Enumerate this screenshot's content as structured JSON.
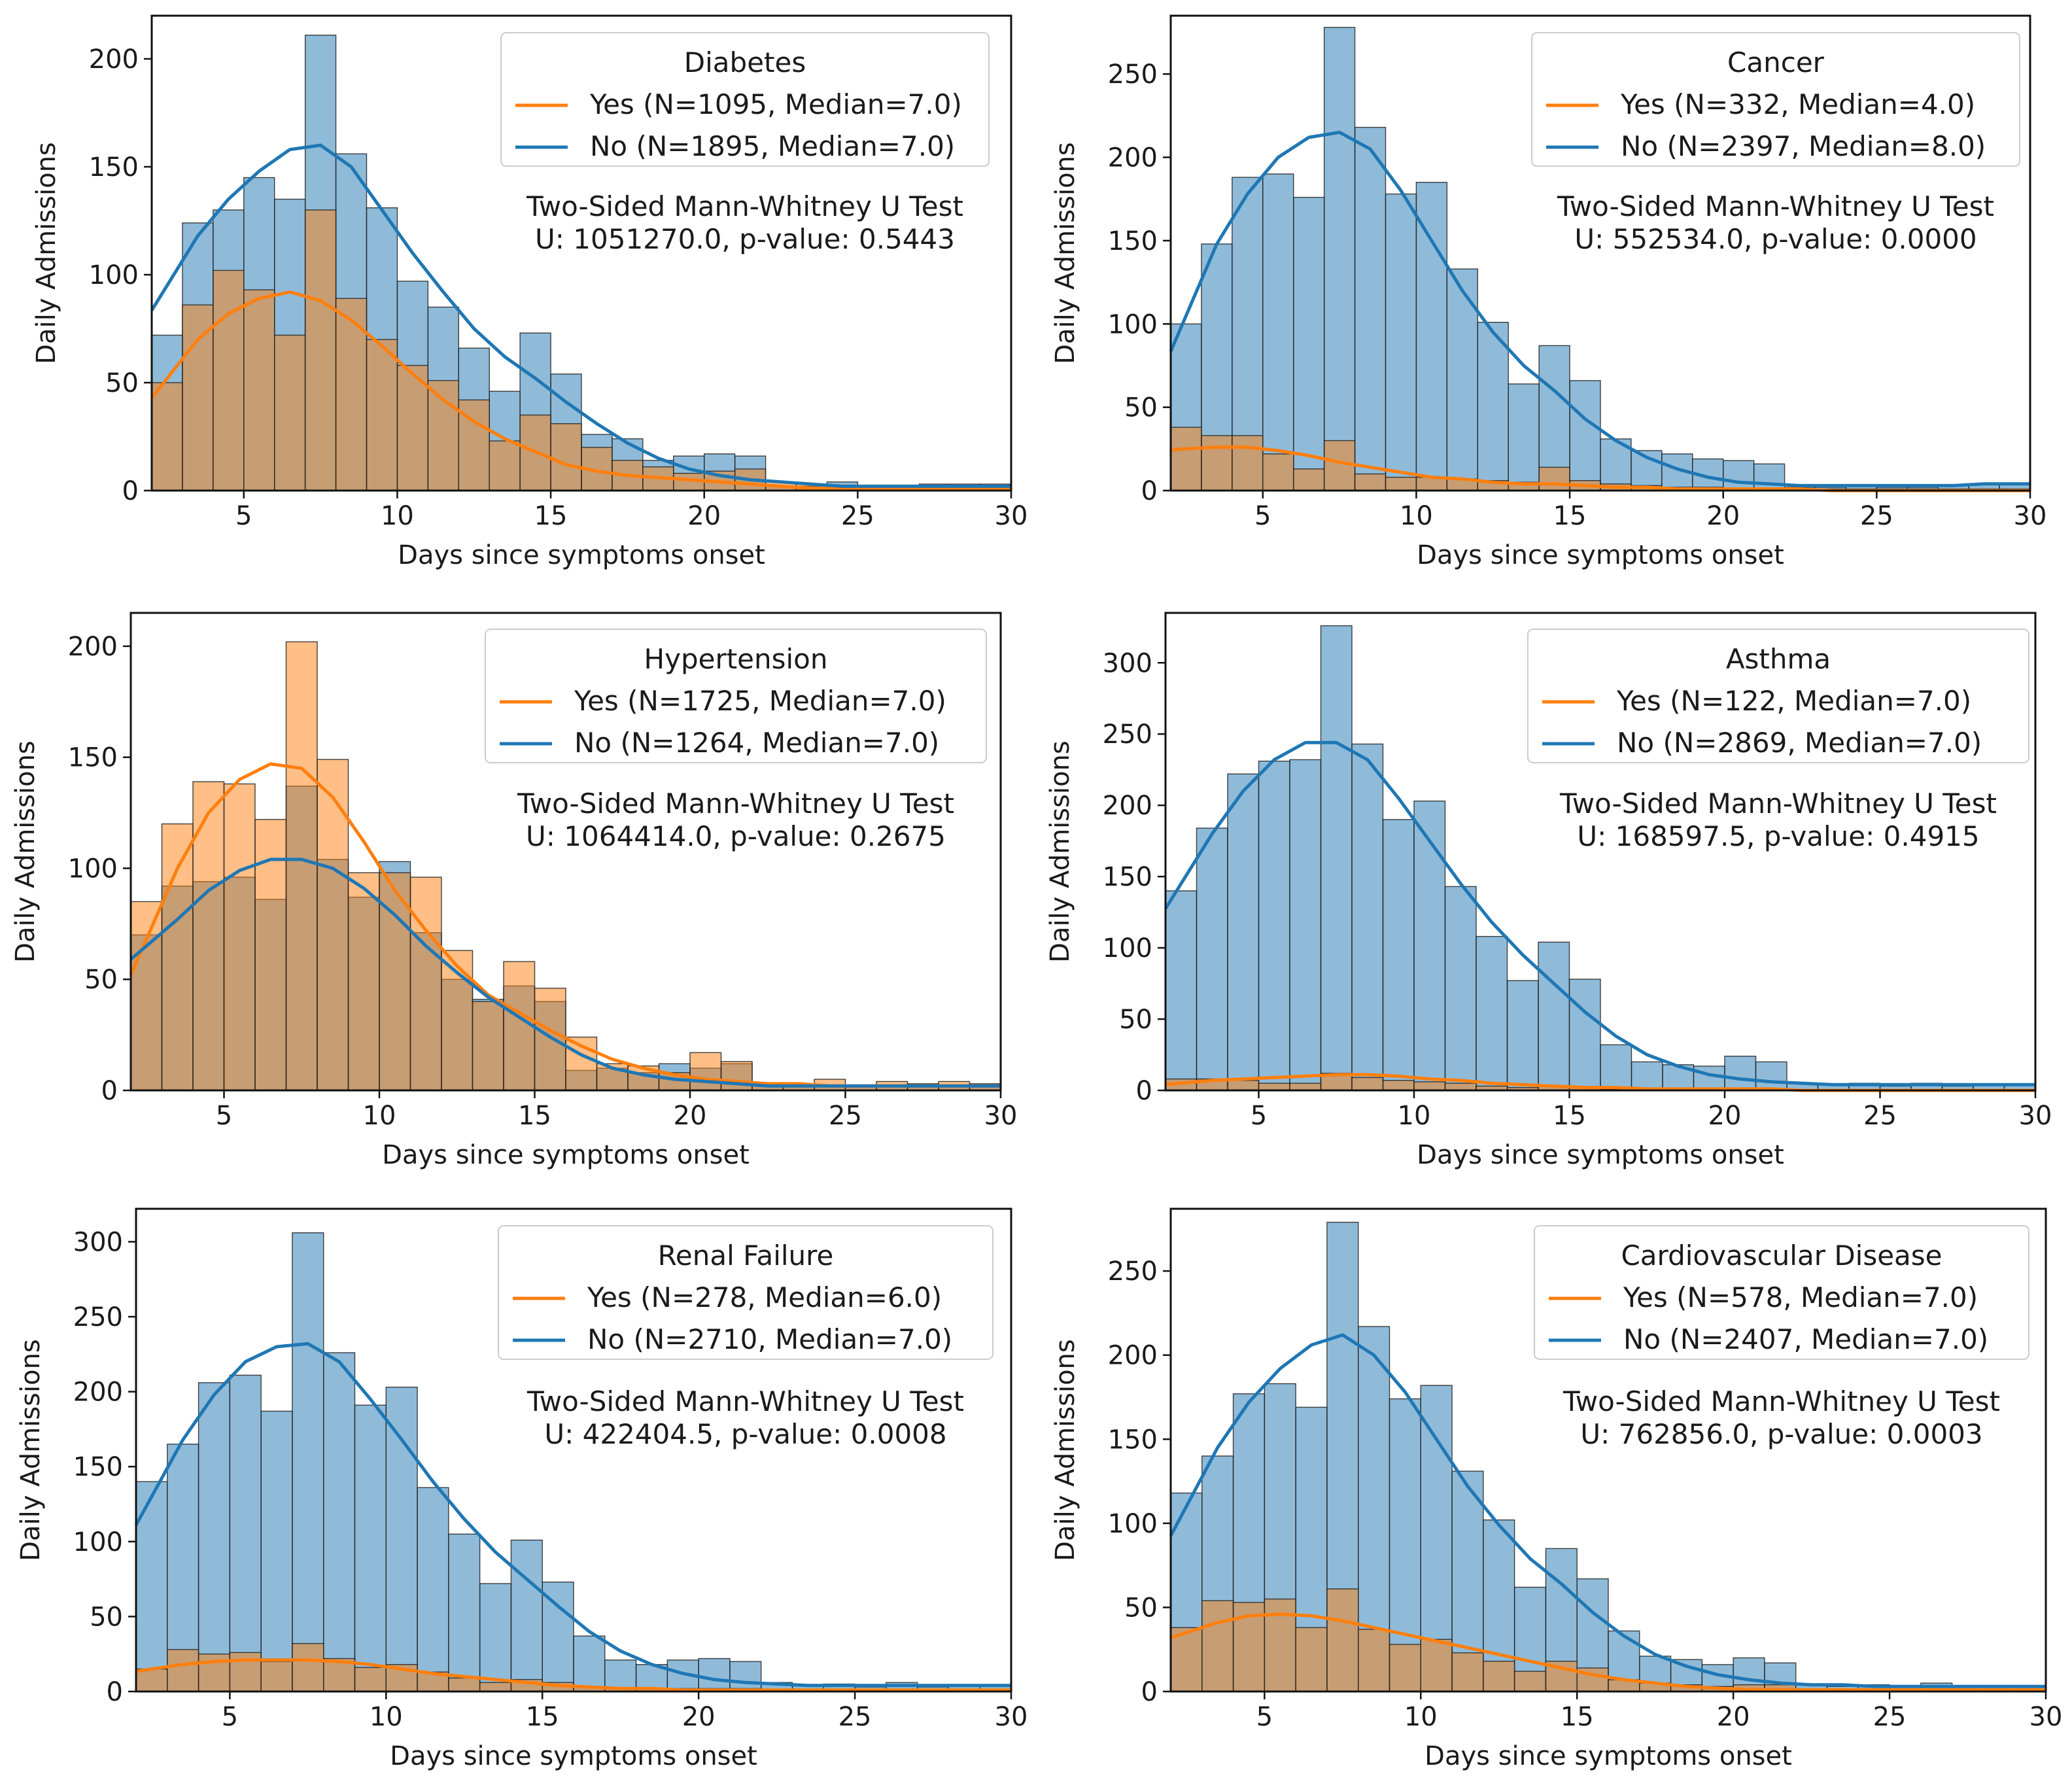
{
  "chart_data": [
    {
      "type": "histogram",
      "title": "Diabetes",
      "xlabel": "Days since symptoms onset",
      "ylabel": "Daily Admissions",
      "xlim": [
        2,
        30
      ],
      "ylim": [
        0,
        220
      ],
      "x_ticks": [
        5,
        10,
        15,
        20,
        25,
        30
      ],
      "y_ticks": [
        0,
        50,
        100,
        150,
        200
      ],
      "bins": [
        2,
        3,
        4,
        5,
        6,
        7,
        8,
        9,
        10,
        11,
        12,
        13,
        14,
        15,
        16,
        17,
        18,
        19,
        20,
        21,
        22,
        23,
        24,
        25,
        26,
        27,
        28,
        29,
        30
      ],
      "series": [
        {
          "name": "Yes (N=1095, Median=7.0)",
          "color": "#ff7f0e",
          "values": [
            50,
            86,
            102,
            93,
            72,
            130,
            89,
            70,
            58,
            51,
            42,
            23,
            35,
            31,
            20,
            14,
            11,
            8,
            9,
            10,
            4,
            3,
            2,
            2,
            2,
            2,
            2,
            2
          ],
          "kde": [
            52,
            70,
            82,
            89,
            92,
            88,
            79,
            67,
            54,
            42,
            32,
            24,
            18,
            12,
            9,
            7,
            6,
            5,
            4,
            3,
            2,
            1,
            1,
            1,
            1,
            1,
            1,
            1
          ]
        },
        {
          "name": "No (N=1895, Median=7.0)",
          "color": "#1f77b4",
          "values": [
            72,
            124,
            130,
            145,
            135,
            211,
            156,
            131,
            97,
            85,
            66,
            46,
            73,
            54,
            26,
            24,
            14,
            16,
            17,
            16,
            2,
            2,
            4,
            2,
            2,
            3,
            3,
            3
          ],
          "kde": [
            95,
            118,
            135,
            148,
            158,
            160,
            150,
            130,
            110,
            92,
            75,
            62,
            52,
            41,
            31,
            22,
            15,
            10,
            7,
            5,
            4,
            3,
            2,
            2,
            2,
            2,
            2,
            2
          ]
        }
      ],
      "annotation": [
        "Two-Sided Mann-Whitney U Test",
        "U: 1051270.0, p-value: 0.5443"
      ]
    },
    {
      "type": "histogram",
      "title": "Cancer",
      "xlabel": "Days since symptoms onset",
      "ylabel": "Daily Admissions",
      "xlim": [
        2,
        30
      ],
      "ylim": [
        0,
        285
      ],
      "x_ticks": [
        5,
        10,
        15,
        20,
        25,
        30
      ],
      "y_ticks": [
        0,
        50,
        100,
        150,
        200,
        250
      ],
      "bins": [
        2,
        3,
        4,
        5,
        6,
        7,
        8,
        9,
        10,
        11,
        12,
        13,
        14,
        15,
        16,
        17,
        18,
        19,
        20,
        21,
        22,
        23,
        24,
        25,
        26,
        27,
        28,
        29,
        30
      ],
      "series": [
        {
          "name": "Yes (N=332, Median=4.0)",
          "color": "#ff7f0e",
          "values": [
            38,
            33,
            33,
            22,
            13,
            30,
            10,
            8,
            8,
            7,
            6,
            5,
            14,
            6,
            4,
            3,
            2,
            2,
            1,
            1,
            1,
            1,
            1,
            1,
            1,
            1,
            1,
            1
          ],
          "kde": [
            25,
            26,
            26,
            24,
            21,
            17,
            14,
            11,
            8,
            7,
            5,
            4,
            4,
            3,
            2,
            2,
            1,
            1,
            1,
            1,
            1,
            0,
            0,
            0,
            0,
            0,
            0,
            0
          ]
        },
        {
          "name": "No (N=2397, Median=8.0)",
          "color": "#1f77b4",
          "values": [
            100,
            148,
            188,
            190,
            176,
            278,
            218,
            178,
            185,
            133,
            101,
            64,
            87,
            66,
            31,
            24,
            22,
            19,
            18,
            16,
            2,
            2,
            3,
            2,
            2,
            3,
            4,
            4
          ],
          "kde": [
            105,
            148,
            178,
            200,
            212,
            215,
            205,
            180,
            150,
            120,
            95,
            75,
            60,
            43,
            30,
            20,
            13,
            8,
            5,
            4,
            3,
            3,
            3,
            3,
            3,
            3,
            4,
            4
          ]
        }
      ],
      "annotation": [
        "Two-Sided Mann-Whitney U Test",
        "U: 552534.0, p-value: 0.0000"
      ]
    },
    {
      "type": "histogram",
      "title": "Hypertension",
      "xlabel": "Days since symptoms onset",
      "ylabel": "Daily Admissions",
      "xlim": [
        2,
        30
      ],
      "ylim": [
        0,
        215
      ],
      "x_ticks": [
        5,
        10,
        15,
        20,
        25,
        30
      ],
      "y_ticks": [
        0,
        50,
        100,
        150,
        200
      ],
      "bins": [
        2,
        3,
        4,
        5,
        6,
        7,
        8,
        9,
        10,
        11,
        12,
        13,
        14,
        15,
        16,
        17,
        18,
        19,
        20,
        21,
        22,
        23,
        24,
        25,
        26,
        27,
        28,
        29,
        30
      ],
      "series": [
        {
          "name": "Yes (N=1725, Median=7.0)",
          "color": "#ff7f0e",
          "values": [
            85,
            120,
            139,
            138,
            122,
            202,
            149,
            98,
            98,
            96,
            63,
            40,
            58,
            46,
            24,
            12,
            11,
            8,
            17,
            13,
            3,
            3,
            5,
            2,
            4,
            3,
            4,
            3
          ],
          "kde": [
            68,
            100,
            125,
            140,
            147,
            145,
            132,
            112,
            90,
            72,
            56,
            43,
            35,
            27,
            20,
            14,
            10,
            7,
            5,
            4,
            3,
            3,
            2,
            2,
            2,
            2,
            2,
            2
          ]
        },
        {
          "name": "No (N=1264, Median=7.0)",
          "color": "#1f77b4",
          "values": [
            70,
            92,
            94,
            96,
            86,
            137,
            104,
            87,
            103,
            71,
            50,
            41,
            47,
            40,
            9,
            10,
            8,
            12,
            10,
            12,
            2,
            2,
            2,
            2,
            2,
            2,
            2,
            2
          ],
          "kde": [
            65,
            77,
            90,
            99,
            104,
            104,
            100,
            91,
            79,
            65,
            53,
            42,
            33,
            24,
            16,
            10,
            7,
            5,
            4,
            3,
            2,
            2,
            2,
            2,
            2,
            2,
            2,
            2
          ]
        }
      ],
      "annotation": [
        "Two-Sided Mann-Whitney U Test",
        "U: 1064414.0, p-value: 0.2675"
      ]
    },
    {
      "type": "histogram",
      "title": "Asthma",
      "xlabel": "Days since symptoms onset",
      "ylabel": "Daily Admissions",
      "xlim": [
        2,
        30
      ],
      "ylim": [
        0,
        335
      ],
      "x_ticks": [
        5,
        10,
        15,
        20,
        25,
        30
      ],
      "y_ticks": [
        0,
        50,
        100,
        150,
        200,
        250,
        300
      ],
      "bins": [
        2,
        3,
        4,
        5,
        6,
        7,
        8,
        9,
        10,
        11,
        12,
        13,
        14,
        15,
        16,
        17,
        18,
        19,
        20,
        21,
        22,
        23,
        24,
        25,
        26,
        27,
        28,
        29,
        30
      ],
      "series": [
        {
          "name": "Yes (N=122, Median=7.0)",
          "color": "#ff7f0e",
          "values": [
            8,
            8,
            7,
            5,
            5,
            12,
            9,
            7,
            6,
            5,
            3,
            2,
            3,
            2,
            1,
            1,
            1,
            1,
            1,
            1,
            0,
            0,
            0,
            0,
            0,
            0,
            0,
            0
          ],
          "kde": [
            5,
            7,
            8,
            9,
            10,
            11,
            11,
            10,
            8,
            7,
            5,
            4,
            3,
            2,
            2,
            1,
            1,
            1,
            1,
            1,
            0,
            0,
            0,
            0,
            0,
            0,
            0,
            0
          ]
        },
        {
          "name": "No (N=2869, Median=7.0)",
          "color": "#1f77b4",
          "values": [
            140,
            184,
            222,
            231,
            232,
            326,
            243,
            190,
            203,
            143,
            108,
            77,
            104,
            78,
            32,
            20,
            18,
            17,
            24,
            20,
            5,
            4,
            5,
            3,
            5,
            3,
            4,
            4
          ],
          "kde": [
            145,
            180,
            210,
            232,
            244,
            244,
            232,
            205,
            175,
            145,
            118,
            95,
            75,
            55,
            38,
            25,
            17,
            11,
            8,
            6,
            5,
            4,
            4,
            4,
            4,
            4,
            4,
            4
          ]
        }
      ],
      "annotation": [
        "Two-Sided Mann-Whitney U Test",
        "U: 168597.5, p-value: 0.4915"
      ]
    },
    {
      "type": "histogram",
      "title": "Renal Failure",
      "xlabel": "Days since symptoms onset",
      "ylabel": "Daily Admissions",
      "xlim": [
        2,
        30
      ],
      "ylim": [
        0,
        322
      ],
      "x_ticks": [
        5,
        10,
        15,
        20,
        25,
        30
      ],
      "y_ticks": [
        0,
        50,
        100,
        150,
        200,
        250,
        300
      ],
      "bins": [
        2,
        3,
        4,
        5,
        6,
        7,
        8,
        9,
        10,
        11,
        12,
        13,
        14,
        15,
        16,
        17,
        18,
        19,
        20,
        21,
        22,
        23,
        24,
        25,
        26,
        27,
        28,
        29,
        30
      ],
      "series": [
        {
          "name": "Yes (N=278, Median=6.0)",
          "color": "#ff7f0e",
          "values": [
            15,
            28,
            25,
            26,
            20,
            32,
            22,
            16,
            18,
            13,
            9,
            6,
            8,
            6,
            3,
            2,
            2,
            2,
            2,
            2,
            1,
            1,
            1,
            1,
            1,
            1,
            1,
            1
          ],
          "kde": [
            15,
            18,
            20,
            21,
            21,
            21,
            20,
            18,
            15,
            12,
            10,
            8,
            6,
            4,
            3,
            2,
            2,
            1,
            1,
            1,
            1,
            1,
            1,
            1,
            1,
            1,
            1,
            1
          ]
        },
        {
          "name": "No (N=2710, Median=7.0)",
          "color": "#1f77b4",
          "values": [
            140,
            165,
            206,
            211,
            187,
            306,
            226,
            191,
            203,
            136,
            105,
            72,
            101,
            73,
            37,
            21,
            18,
            21,
            22,
            20,
            6,
            4,
            5,
            3,
            6,
            3,
            4,
            4
          ],
          "kde": [
            130,
            168,
            198,
            220,
            230,
            232,
            220,
            195,
            168,
            140,
            115,
            93,
            75,
            57,
            40,
            27,
            18,
            12,
            8,
            6,
            5,
            4,
            4,
            4,
            4,
            4,
            4,
            4
          ]
        }
      ],
      "annotation": [
        "Two-Sided Mann-Whitney U Test",
        "U: 422404.5, p-value: 0.0008"
      ]
    },
    {
      "type": "histogram",
      "title": "Cardiovascular Disease",
      "xlabel": "Days since symptoms onset",
      "ylabel": "Daily Admissions",
      "xlim": [
        2,
        30
      ],
      "ylim": [
        0,
        287
      ],
      "x_ticks": [
        5,
        10,
        15,
        20,
        25,
        30
      ],
      "y_ticks": [
        0,
        50,
        100,
        150,
        200,
        250
      ],
      "bins": [
        2,
        3,
        4,
        5,
        6,
        7,
        8,
        9,
        10,
        11,
        12,
        13,
        14,
        15,
        16,
        17,
        18,
        19,
        20,
        21,
        22,
        23,
        24,
        25,
        26,
        27,
        28,
        29,
        30
      ],
      "series": [
        {
          "name": "Yes (N=578, Median=7.0)",
          "color": "#ff7f0e",
          "values": [
            38,
            54,
            53,
            55,
            38,
            61,
            37,
            28,
            31,
            23,
            18,
            12,
            18,
            14,
            7,
            5,
            4,
            3,
            4,
            4,
            1,
            1,
            1,
            1,
            1,
            1,
            1,
            1
          ],
          "kde": [
            35,
            41,
            45,
            46,
            45,
            42,
            38,
            34,
            30,
            26,
            22,
            18,
            14,
            10,
            7,
            5,
            3,
            2,
            1,
            1,
            1,
            1,
            1,
            1,
            1,
            1,
            1,
            1
          ]
        },
        {
          "name": "No (N=2407, Median=7.0)",
          "color": "#1f77b4",
          "values": [
            118,
            140,
            177,
            183,
            169,
            279,
            217,
            174,
            182,
            131,
            102,
            62,
            85,
            67,
            36,
            21,
            19,
            16,
            20,
            17,
            4,
            3,
            4,
            3,
            5,
            3,
            3,
            3
          ],
          "kde": [
            110,
            145,
            172,
            192,
            206,
            212,
            200,
            178,
            150,
            122,
            99,
            79,
            64,
            47,
            33,
            22,
            15,
            10,
            7,
            5,
            4,
            4,
            3,
            3,
            3,
            3,
            3,
            3
          ]
        }
      ],
      "annotation": [
        "Two-Sided Mann-Whitney U Test",
        "U: 762856.0, p-value: 0.0003"
      ]
    }
  ]
}
